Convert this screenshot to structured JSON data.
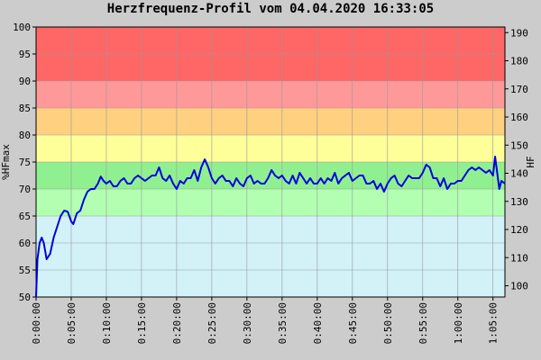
{
  "chart_data": {
    "type": "line",
    "title": "Herzfrequenz-Profil vom 04.04.2020 16:33:05",
    "y_label": "%HFmax",
    "y2_label": "HF",
    "xlim": [
      0,
      66.7
    ],
    "ylim": [
      50,
      100
    ],
    "y2lim": [
      96,
      192
    ],
    "yticks": [
      50,
      55,
      60,
      65,
      70,
      75,
      80,
      85,
      90,
      95,
      100
    ],
    "y2ticks": [
      100,
      110,
      120,
      130,
      140,
      150,
      160,
      170,
      180,
      190
    ],
    "xticks": [
      {
        "value": 0,
        "label": "0:00:00"
      },
      {
        "value": 5,
        "label": "0:05:00"
      },
      {
        "value": 10,
        "label": "0:10:00"
      },
      {
        "value": 15,
        "label": "0:15:00"
      },
      {
        "value": 20,
        "label": "0:20:00"
      },
      {
        "value": 25,
        "label": "0:25:00"
      },
      {
        "value": 30,
        "label": "0:30:00"
      },
      {
        "value": 35,
        "label": "0:35:00"
      },
      {
        "value": 40,
        "label": "0:40:00"
      },
      {
        "value": 45,
        "label": "0:45:00"
      },
      {
        "value": 50,
        "label": "0:50:00"
      },
      {
        "value": 55,
        "label": "0:55:00"
      },
      {
        "value": 60,
        "label": "1:00:00"
      },
      {
        "value": 65,
        "label": "1:05:00"
      }
    ],
    "grid": true,
    "zones": [
      {
        "from": 50,
        "to": 65,
        "color": "#d2f2f8"
      },
      {
        "from": 65,
        "to": 70,
        "color": "#b2ffb2"
      },
      {
        "from": 70,
        "to": 75,
        "color": "#90f090"
      },
      {
        "from": 75,
        "to": 80,
        "color": "#ffff99"
      },
      {
        "from": 80,
        "to": 85,
        "color": "#ffd080"
      },
      {
        "from": 85,
        "to": 90,
        "color": "#ff9999"
      },
      {
        "from": 90,
        "to": 100,
        "color": "#ff6666"
      }
    ],
    "x": [
      0,
      0.2,
      0.5,
      0.8,
      1.1,
      1.5,
      2,
      2.5,
      3,
      3.5,
      4,
      4.5,
      5,
      5.3,
      5.8,
      6.3,
      6.8,
      7.3,
      7.8,
      8.3,
      8.8,
      9.2,
      9.6,
      10,
      10.5,
      11,
      11.5,
      12,
      12.5,
      13,
      13.5,
      14,
      14.5,
      15,
      15.5,
      16,
      16.5,
      17,
      17.5,
      18,
      18.5,
      19,
      19.5,
      20,
      20.5,
      21,
      21.5,
      22,
      22.5,
      23,
      23.5,
      24,
      24.5,
      25,
      25.5,
      26,
      26.5,
      27,
      27.5,
      28,
      28.5,
      29,
      29.5,
      30,
      30.5,
      31,
      31.5,
      32,
      32.5,
      33,
      33.5,
      34,
      34.5,
      35,
      35.5,
      36,
      36.5,
      37,
      37.5,
      38,
      38.5,
      39,
      39.5,
      40,
      40.5,
      41,
      41.5,
      42,
      42.5,
      43,
      43.5,
      44,
      44.5,
      45,
      45.5,
      46,
      46.5,
      47,
      47.5,
      48,
      48.5,
      49,
      49.5,
      50,
      50.5,
      51,
      51.5,
      52,
      52.5,
      53,
      53.5,
      54,
      54.5,
      55,
      55.5,
      56,
      56.5,
      57,
      57.5,
      58,
      58.5,
      59,
      59.5,
      60,
      60.5,
      61,
      61.5,
      62,
      62.5,
      63,
      63.5,
      64,
      64.5,
      65,
      65.3,
      65.6,
      65.9,
      66.2,
      66.7
    ],
    "series": [
      {
        "name": "HF",
        "color": "#0000dd",
        "values": [
          50,
          57,
          60,
          61,
          60,
          57,
          58,
          61,
          63,
          65,
          66,
          65.8,
          64,
          63.5,
          65.5,
          66,
          68,
          69.5,
          70,
          70,
          71,
          72.3,
          71.5,
          71,
          71.5,
          70.5,
          70.5,
          71.5,
          72,
          71,
          71,
          72,
          72.5,
          72,
          71.5,
          72,
          72.5,
          72.5,
          74,
          72,
          71.5,
          72.5,
          71,
          70,
          71.5,
          71,
          72,
          72,
          73.5,
          71.5,
          74,
          75.5,
          74,
          72,
          71,
          72,
          72.5,
          71.5,
          71.5,
          70.5,
          72,
          71,
          70.5,
          72,
          72.5,
          71,
          71.5,
          71,
          71,
          72,
          73.5,
          72.5,
          72,
          72.5,
          71.5,
          71,
          72.5,
          71,
          73,
          72,
          71,
          72,
          71,
          71,
          72,
          71,
          72,
          71.5,
          73,
          71,
          72,
          72.5,
          73,
          71.5,
          72,
          72.5,
          72.5,
          71,
          71,
          71.5,
          70,
          71,
          69.5,
          71,
          72,
          72.5,
          71,
          70.5,
          71.5,
          72.5,
          72,
          72,
          72,
          73,
          74.5,
          74,
          72,
          72,
          70.5,
          72,
          70,
          71,
          71,
          71.5,
          71.5,
          72.5,
          73.5,
          74,
          73.5,
          74,
          73.5,
          73,
          73.5,
          72.5,
          76,
          73,
          70,
          71.5,
          71
        ]
      }
    ]
  }
}
